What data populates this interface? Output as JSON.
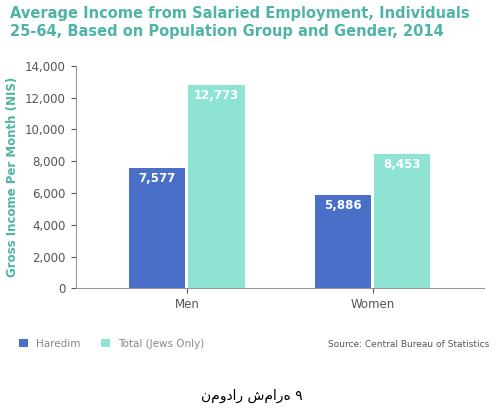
{
  "chart_data": {
    "type": "bar",
    "title": "Average Income from Salaried Employment, Individuals 25-64, Based on Population Group and Gender, 2014",
    "y_label": "Gross Income Per Month (NIS)",
    "categories": [
      "Men",
      "Women"
    ],
    "series": [
      {
        "name": "Haredim",
        "color": "#4a6fc8",
        "values": [
          7577,
          5886
        ],
        "value_labels": [
          "7,577",
          "5,886"
        ]
      },
      {
        "name": "Total (Jews Only)",
        "color": "#8fe3d3",
        "values": [
          12773,
          8453
        ],
        "value_labels": [
          "12,773",
          "8,453"
        ]
      }
    ],
    "ylim": [
      0,
      14000
    ],
    "yticks": [
      0,
      {
        "value": 2000,
        "label": "2,000"
      },
      {
        "value": 4000,
        "label": "4,000"
      },
      {
        "value": 6000,
        "label": "6,000"
      },
      {
        "value": 8000,
        "label": "8,000"
      },
      {
        "value": 10000,
        "label": "10,000"
      },
      {
        "value": 12000,
        "label": "12,000"
      },
      {
        "value": 14000,
        "label": "14,000"
      }
    ],
    "grid": false,
    "legend": "lower left",
    "data_labels": true,
    "source": "Source: Central Bureau of Statistics",
    "caption": "نمودار شماره ۹"
  }
}
